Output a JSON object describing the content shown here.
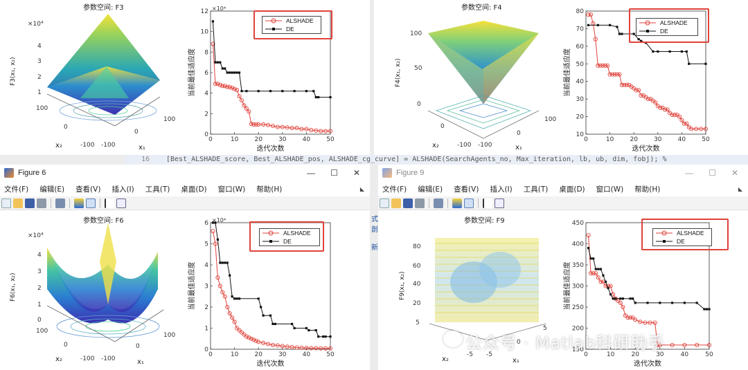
{
  "code_line": {
    "number": "16",
    "text": "[Best_ALSHADE_score, Best_ALSHADE_pos, ALSHADE_cg_curve] = ALSHADE(SearchAgents_no, Max_iteration, lb, ub, dim, fobj); %"
  },
  "windows": [
    {
      "title": "Figure 6",
      "controls": [
        "—",
        "☐",
        "✕"
      ]
    },
    {
      "title": "Figure 9",
      "controls": [
        "—",
        "☐",
        "✕"
      ]
    }
  ],
  "menu": [
    "文件(F)",
    "编辑(E)",
    "查看(V)",
    "插入(I)",
    "工具(T)",
    "桌面(D)",
    "窗口(W)",
    "帮助(H)"
  ],
  "legend": {
    "alshade": "ALSHADE",
    "de": "DE"
  },
  "colors": {
    "alshade": "#e0413a",
    "de": "#111111",
    "highlight": "#e0413a"
  },
  "surfaces": {
    "F3": {
      "title": "参数空间: F3",
      "zlabel": "F3(x₁, x₂)",
      "exp": "×10⁴",
      "zticks": [
        "4",
        "3",
        "2",
        "1"
      ],
      "x2": "x₂",
      "x1": "x₁",
      "x2ticks": [
        "100",
        "0",
        "-100"
      ],
      "x1ticks": [
        "100",
        "0",
        "-100"
      ]
    },
    "F4": {
      "title": "参数空间: F4",
      "zlabel": "F4(x₁, x₂)",
      "zticks": [
        "100",
        "50",
        "0"
      ],
      "x2": "x₂",
      "x1": "x₁",
      "x2ticks": [
        "0",
        "-100"
      ],
      "x1ticks": [
        "100",
        "0",
        "-100"
      ]
    },
    "F6": {
      "title": "参数空间: F6",
      "zlabel": "F6(x₁, x₂)",
      "exp": "×10⁴",
      "zticks": [
        "4",
        "3",
        "2",
        "1",
        "0"
      ],
      "x2": "x₂",
      "x1": "x₁",
      "x2ticks": [
        "100",
        "0",
        "-100"
      ],
      "x1ticks": [
        "100",
        "0",
        "-100"
      ]
    },
    "F9": {
      "title": "参数空间: F9",
      "zlabel": "F9(x₁, x₂)",
      "zticks": [
        "80",
        "60",
        "40",
        "20"
      ],
      "x2": "x₂",
      "x1": "x₁",
      "x2ticks": [
        "5",
        "-5"
      ],
      "x1ticks": [
        "5",
        "0",
        "-5"
      ]
    }
  },
  "chart_data": [
    {
      "type": "line",
      "id": "F3",
      "xlabel": "迭代次数",
      "ylabel": "当前最佳适应度",
      "exp": "×10⁴",
      "xlim": [
        0,
        50
      ],
      "ylim": [
        0,
        12
      ],
      "xticks": [
        0,
        10,
        20,
        30,
        40,
        50
      ],
      "yticks": [
        0,
        2,
        4,
        6,
        8,
        10,
        12
      ],
      "series": [
        {
          "name": "ALSHADE",
          "x": [
            1,
            2,
            3,
            4,
            5,
            6,
            7,
            8,
            9,
            10,
            11,
            12,
            13,
            14,
            15,
            16,
            17,
            18,
            19,
            20,
            22,
            24,
            26,
            28,
            30,
            32,
            34,
            36,
            38,
            40,
            42,
            44,
            46,
            48,
            50
          ],
          "y": [
            8.8,
            4.9,
            4.9,
            4.8,
            4.7,
            4.7,
            4.6,
            4.6,
            4.5,
            4.4,
            4.3,
            3.7,
            3.3,
            2.8,
            2.5,
            2.2,
            1.0,
            0.95,
            0.95,
            0.95,
            0.95,
            0.9,
            0.8,
            0.7,
            0.7,
            0.65,
            0.6,
            0.6,
            0.5,
            0.5,
            0.4,
            0.35,
            0.3,
            0.3,
            0.3
          ]
        },
        {
          "name": "DE",
          "x": [
            1,
            2,
            3,
            4,
            5,
            6,
            7,
            8,
            9,
            10,
            11,
            12,
            13,
            15,
            20,
            25,
            30,
            35,
            40,
            43,
            44,
            45,
            50
          ],
          "y": [
            11.0,
            7.0,
            7.0,
            7.0,
            6.4,
            6.4,
            6.0,
            6.0,
            6.0,
            6.0,
            6.0,
            6.0,
            4.2,
            4.2,
            4.2,
            4.2,
            4.2,
            4.2,
            4.2,
            4.2,
            3.6,
            3.6,
            3.6
          ]
        }
      ]
    },
    {
      "type": "line",
      "id": "F4",
      "xlabel": "迭代次数",
      "ylabel": "当前最佳适应度",
      "xlim": [
        0,
        50
      ],
      "ylim": [
        10,
        80
      ],
      "xticks": [
        0,
        10,
        20,
        30,
        40,
        50
      ],
      "yticks": [
        10,
        20,
        30,
        40,
        50,
        60,
        70,
        80
      ],
      "series": [
        {
          "name": "ALSHADE",
          "x": [
            1,
            2,
            3,
            4,
            5,
            6,
            7,
            8,
            9,
            10,
            11,
            12,
            13,
            14,
            15,
            16,
            17,
            18,
            19,
            20,
            21,
            22,
            23,
            24,
            25,
            26,
            27,
            28,
            29,
            30,
            31,
            32,
            33,
            34,
            35,
            36,
            37,
            38,
            39,
            40,
            41,
            42,
            43,
            44,
            46,
            48,
            50
          ],
          "y": [
            78,
            78,
            73,
            64,
            49,
            49,
            49,
            49,
            49,
            44,
            44,
            44,
            44,
            44,
            38,
            38,
            38,
            38,
            37,
            36,
            35,
            35,
            32,
            32,
            31,
            30,
            30,
            29,
            28,
            26,
            25,
            25,
            24,
            24,
            22,
            21,
            21,
            21,
            20,
            18,
            16,
            16,
            14,
            13,
            13,
            13,
            13
          ]
        },
        {
          "name": "DE",
          "x": [
            1,
            5,
            10,
            13,
            14,
            15,
            20,
            22,
            23,
            25,
            28,
            30,
            35,
            40,
            42,
            43,
            50
          ],
          "y": [
            72,
            72,
            72,
            71,
            67,
            67,
            67,
            64,
            63,
            62,
            57,
            57,
            57,
            57,
            57,
            50,
            50
          ]
        }
      ]
    },
    {
      "type": "line",
      "id": "F6",
      "xlabel": "迭代次数",
      "ylabel": "当前最佳适应度",
      "exp": "×10⁴",
      "xlim": [
        0,
        50
      ],
      "ylim": [
        0,
        6
      ],
      "xticks": [
        0,
        10,
        20,
        30,
        40,
        50
      ],
      "yticks": [
        0,
        1,
        2,
        3,
        4,
        5,
        6
      ],
      "series": [
        {
          "name": "ALSHADE",
          "x": [
            1,
            2,
            3,
            4,
            5,
            6,
            7,
            8,
            9,
            10,
            11,
            12,
            13,
            14,
            15,
            16,
            17,
            18,
            19,
            20,
            22,
            24,
            26,
            28,
            30,
            32,
            34,
            36,
            38,
            40,
            42,
            44,
            46,
            48,
            50
          ],
          "y": [
            5.6,
            5.0,
            3.4,
            3.0,
            2.7,
            2.5,
            2.0,
            1.7,
            1.5,
            1.3,
            1.0,
            0.9,
            0.8,
            0.7,
            0.6,
            0.55,
            0.5,
            0.45,
            0.4,
            0.35,
            0.3,
            0.25,
            0.2,
            0.18,
            0.15,
            0.12,
            0.1,
            0.08,
            0.07,
            0.06,
            0.05,
            0.05,
            0.04,
            0.04,
            0.04
          ]
        },
        {
          "name": "DE",
          "x": [
            1,
            2,
            3,
            4,
            5,
            6,
            7,
            8,
            9,
            10,
            11,
            12,
            20,
            21,
            22,
            25,
            26,
            27,
            34,
            35,
            40,
            41,
            44,
            45,
            47,
            48,
            50
          ],
          "y": [
            6.0,
            6.0,
            5.2,
            4.1,
            4.1,
            4.1,
            4.1,
            3.5,
            2.5,
            2.4,
            2.4,
            2.4,
            2.4,
            2.0,
            1.6,
            1.6,
            1.2,
            1.2,
            1.2,
            1.0,
            1.0,
            0.9,
            0.9,
            0.6,
            0.6,
            0.6,
            0.6
          ]
        }
      ]
    },
    {
      "type": "line",
      "id": "F9",
      "xlabel": "迭代次数",
      "ylabel": "当前最佳适应度",
      "xlim": [
        0,
        50
      ],
      "ylim": [
        150,
        450
      ],
      "xticks": [
        0,
        10,
        20,
        30,
        40,
        50
      ],
      "yticks": [
        150,
        200,
        250,
        300,
        350,
        400,
        450
      ],
      "series": [
        {
          "name": "ALSHADE",
          "x": [
            1,
            2,
            3,
            4,
            5,
            6,
            7,
            8,
            9,
            10,
            11,
            12,
            13,
            14,
            15,
            16,
            17,
            18,
            19,
            20,
            22,
            24,
            26,
            28,
            29,
            30,
            35,
            40,
            45,
            50
          ],
          "y": [
            420,
            330,
            330,
            330,
            320,
            310,
            310,
            300,
            300,
            300,
            280,
            270,
            265,
            260,
            250,
            230,
            225,
            225,
            225,
            220,
            215,
            213,
            213,
            213,
            160,
            160,
            160,
            160,
            160,
            160
          ]
        },
        {
          "name": "DE",
          "x": [
            1,
            2,
            3,
            4,
            5,
            6,
            7,
            8,
            9,
            10,
            11,
            12,
            14,
            15,
            18,
            19,
            20,
            25,
            30,
            35,
            40,
            45,
            48,
            49,
            50
          ],
          "y": [
            390,
            365,
            365,
            340,
            340,
            340,
            325,
            310,
            295,
            280,
            270,
            270,
            270,
            270,
            270,
            270,
            260,
            260,
            260,
            260,
            260,
            260,
            245,
            245,
            245
          ]
        }
      ]
    }
  ],
  "watermark": "公众号 · Matlab科研助手"
}
